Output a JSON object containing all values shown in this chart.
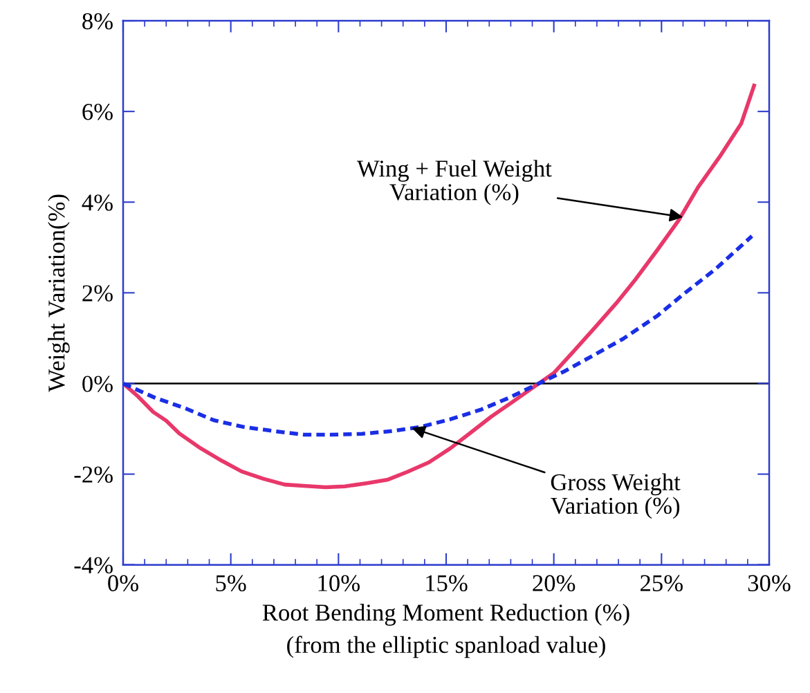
{
  "chart_data": {
    "type": "line",
    "xlabel": "Root Bending Moment Reduction (%)\n(from the elliptic spanload value)",
    "ylabel": "Weight Variation(%)",
    "xlim": [
      0,
      30
    ],
    "ylim": [
      -4,
      8
    ],
    "xticks": [
      {
        "value": 0,
        "label": "0%"
      },
      {
        "value": 5,
        "label": "5%"
      },
      {
        "value": 10,
        "label": "10%"
      },
      {
        "value": 15,
        "label": "15%"
      },
      {
        "value": 20,
        "label": "20%"
      },
      {
        "value": 25,
        "label": "25%"
      },
      {
        "value": 30,
        "label": "30%"
      }
    ],
    "yticks": [
      {
        "value": -4,
        "label": "-4%"
      },
      {
        "value": -2,
        "label": "-2%"
      },
      {
        "value": 0,
        "label": "0%"
      },
      {
        "value": 2,
        "label": "2%"
      },
      {
        "value": 4,
        "label": "4%"
      },
      {
        "value": 6,
        "label": "6%"
      },
      {
        "value": 8,
        "label": "8%"
      }
    ],
    "grid": false,
    "legend": false,
    "marker": "none",
    "series": [
      {
        "color": "#e8386a",
        "line_style": "solid",
        "x": [
          0,
          0.7,
          1.4,
          2,
          2.6,
          3.6,
          4.6,
          5.5,
          6.5,
          7.5,
          8.4,
          9.4,
          10.3,
          11.3,
          12.3,
          13.2,
          14.2,
          15.2,
          16.1,
          17.1,
          18.1,
          19,
          20,
          20.9,
          21.9,
          22.9,
          23.8,
          24.8,
          25.8,
          26.7,
          27.7,
          28.7,
          29.3
        ],
        "values": [
          0,
          -0.29,
          -0.63,
          -0.82,
          -1.1,
          -1.43,
          -1.71,
          -1.94,
          -2.1,
          -2.23,
          -2.26,
          -2.29,
          -2.27,
          -2.2,
          -2.12,
          -1.95,
          -1.74,
          -1.43,
          -1.1,
          -0.73,
          -0.4,
          -0.1,
          0.23,
          0.7,
          1.23,
          1.77,
          2.3,
          2.94,
          3.6,
          4.33,
          5.0,
          5.73,
          6.57
        ]
      },
      {
        "color": "#1a2ee6",
        "line_style": "dashed",
        "x": [
          0,
          1.5,
          2.9,
          4.2,
          5.6,
          7.0,
          8.4,
          9.7,
          11.1,
          12.5,
          13.8,
          15.2,
          16.6,
          17.9,
          19.3,
          20.5,
          21.8,
          23.2,
          24.8,
          26.1,
          27.5,
          29.2
        ],
        "values": [
          0,
          -0.32,
          -0.55,
          -0.81,
          -0.96,
          -1.05,
          -1.13,
          -1.13,
          -1.11,
          -1.05,
          -0.96,
          -0.79,
          -0.58,
          -0.32,
          0,
          0.27,
          0.61,
          0.98,
          1.49,
          2.0,
          2.52,
          3.25
        ]
      }
    ],
    "ref_lines": [
      {
        "axis": "y",
        "value": 0,
        "color": "#000000",
        "line_style": "solid"
      }
    ],
    "annotations": [
      {
        "text": "Wing + Fuel Weight\nVariation (%)",
        "x": 26.0,
        "y": 3.67
      },
      {
        "text": "Gross Weight\nVariation (%)",
        "x": 13.4,
        "y": -0.98
      }
    ]
  }
}
